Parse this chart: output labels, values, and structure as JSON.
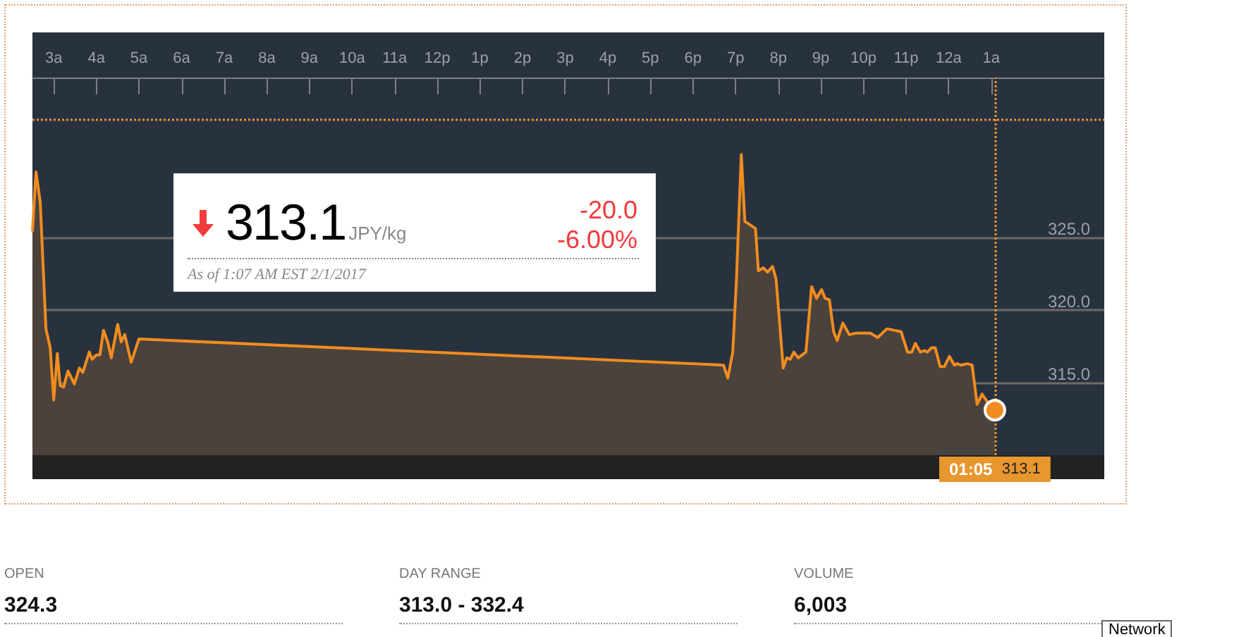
{
  "chart_data": {
    "type": "area",
    "title": "313.1",
    "x": [
      "2017-01-31T02:30",
      "2017-01-31T02:35",
      "2017-01-31T02:41",
      "2017-01-31T02:49",
      "2017-01-31T02:55",
      "2017-01-31T03:00",
      "2017-01-31T03:05",
      "2017-01-31T03:09",
      "2017-01-31T03:14",
      "2017-01-31T03:20",
      "2017-01-31T03:29",
      "2017-01-31T03:36",
      "2017-01-31T03:41",
      "2017-01-31T03:50",
      "2017-01-31T03:54",
      "2017-01-31T04:00",
      "2017-01-31T04:05",
      "2017-01-31T04:10",
      "2017-01-31T04:16",
      "2017-01-31T04:21",
      "2017-01-31T04:30",
      "2017-01-31T04:35",
      "2017-01-31T04:40",
      "2017-01-31T04:49",
      "2017-01-31T05:00",
      "2017-01-31T18:43",
      "2017-01-31T18:49",
      "2017-01-31T18:56",
      "2017-01-31T19:01",
      "2017-01-31T19:08",
      "2017-01-31T19:13",
      "2017-01-31T19:28",
      "2017-01-31T19:32",
      "2017-01-31T19:39",
      "2017-01-31T19:45",
      "2017-01-31T19:52",
      "2017-01-31T19:57",
      "2017-01-31T20:07",
      "2017-01-31T20:12",
      "2017-01-31T20:17",
      "2017-01-31T20:22",
      "2017-01-31T20:28",
      "2017-01-31T20:39",
      "2017-01-31T20:47",
      "2017-01-31T20:54",
      "2017-01-31T21:01",
      "2017-01-31T21:06",
      "2017-01-31T21:12",
      "2017-01-31T21:18",
      "2017-01-31T21:23",
      "2017-01-31T21:31",
      "2017-01-31T21:40",
      "2017-01-31T21:50",
      "2017-01-31T22:10",
      "2017-01-31T22:20",
      "2017-01-31T22:33",
      "2017-01-31T22:53",
      "2017-01-31T23:02",
      "2017-01-31T23:08",
      "2017-01-31T23:13",
      "2017-01-31T23:20",
      "2017-01-31T23:26",
      "2017-01-31T23:30",
      "2017-01-31T23:36",
      "2017-01-31T23:41",
      "2017-01-31T23:48",
      "2017-01-31T23:54",
      "2017-02-01T00:01",
      "2017-02-01T00:08",
      "2017-02-01T00:12",
      "2017-02-01T00:17",
      "2017-02-01T00:26",
      "2017-02-01T00:33",
      "2017-02-01T00:40",
      "2017-02-01T00:47",
      "2017-02-01T00:54",
      "2017-02-01T01:05"
    ],
    "series": [
      {
        "color": "#f28c1e",
        "values": [
          325.4,
          329.5,
          327.4,
          318.7,
          317.4,
          313.8,
          317.0,
          314.8,
          314.7,
          315.8,
          314.9,
          316.0,
          315.7,
          317.1,
          316.6,
          316.9,
          316.9,
          318.6,
          317.8,
          316.7,
          319.0,
          317.8,
          318.3,
          316.4,
          318.0,
          316.2,
          315.3,
          317.1,
          321.9,
          330.7,
          326.1,
          325.6,
          322.7,
          322.9,
          322.6,
          323.0,
          322.1,
          316.0,
          316.7,
          316.6,
          317.1,
          316.7,
          317.1,
          321.6,
          320.8,
          321.4,
          320.8,
          320.7,
          318.5,
          317.9,
          319.1,
          318.3,
          318.4,
          318.4,
          318.1,
          318.7,
          318.5,
          317.1,
          317.1,
          317.7,
          317.1,
          317.2,
          317.1,
          317.4,
          317.4,
          316.1,
          316.1,
          316.8,
          316.2,
          316.3,
          316.2,
          316.3,
          316.2,
          313.5,
          314.2,
          313.7,
          313.1
        ]
      }
    ],
    "xlim": [
      "2017-01-31T02:30",
      "2017-02-01T03:39"
    ],
    "xticks": [
      {
        "value": "2017-01-31T03:00",
        "label": "3a"
      },
      {
        "value": "2017-01-31T04:00",
        "label": "4a"
      },
      {
        "value": "2017-01-31T05:00",
        "label": "5a"
      },
      {
        "value": "2017-01-31T06:00",
        "label": "6a"
      },
      {
        "value": "2017-01-31T07:00",
        "label": "7a"
      },
      {
        "value": "2017-01-31T08:00",
        "label": "8a"
      },
      {
        "value": "2017-01-31T09:00",
        "label": "9a"
      },
      {
        "value": "2017-01-31T10:00",
        "label": "10a"
      },
      {
        "value": "2017-01-31T11:00",
        "label": "11a"
      },
      {
        "value": "2017-01-31T12:00",
        "label": "12p"
      },
      {
        "value": "2017-01-31T13:00",
        "label": "1p"
      },
      {
        "value": "2017-01-31T14:00",
        "label": "2p"
      },
      {
        "value": "2017-01-31T15:00",
        "label": "3p"
      },
      {
        "value": "2017-01-31T16:00",
        "label": "4p"
      },
      {
        "value": "2017-01-31T17:00",
        "label": "5p"
      },
      {
        "value": "2017-01-31T18:00",
        "label": "6p"
      },
      {
        "value": "2017-01-31T19:00",
        "label": "7p"
      },
      {
        "value": "2017-01-31T20:00",
        "label": "8p"
      },
      {
        "value": "2017-01-31T21:00",
        "label": "9p"
      },
      {
        "value": "2017-01-31T22:00",
        "label": "10p"
      },
      {
        "value": "2017-01-31T23:00",
        "label": "11p"
      },
      {
        "value": "2017-02-01T00:00",
        "label": "12a"
      },
      {
        "value": "2017-02-01T01:00",
        "label": "1a"
      }
    ],
    "ylim": [
      310,
      336
    ],
    "yticks": [
      {
        "value": 315,
        "label": "315.0"
      },
      {
        "value": 320,
        "label": "320.0"
      },
      {
        "value": 325,
        "label": "325.0"
      }
    ],
    "grid": "y",
    "marker": "none",
    "ref_lines": [
      {
        "axis": "y",
        "value": 333.1,
        "color": "#e8962e",
        "line_style": "dotted"
      },
      {
        "axis": "x",
        "value": "2017-02-01T01:05",
        "label": "01:05",
        "color": "#e8962e",
        "line_style": "dotted"
      }
    ],
    "annotations": [
      "JPY/kg",
      "-20.0",
      "-6.00%",
      "As of 1:07 AM EST 2/1/2017",
      "313.1",
      "OPEN",
      "324.3",
      "DAY RANGE",
      "313.0 - 332.4",
      "VOLUME",
      "6,003",
      "Network"
    ]
  }
}
